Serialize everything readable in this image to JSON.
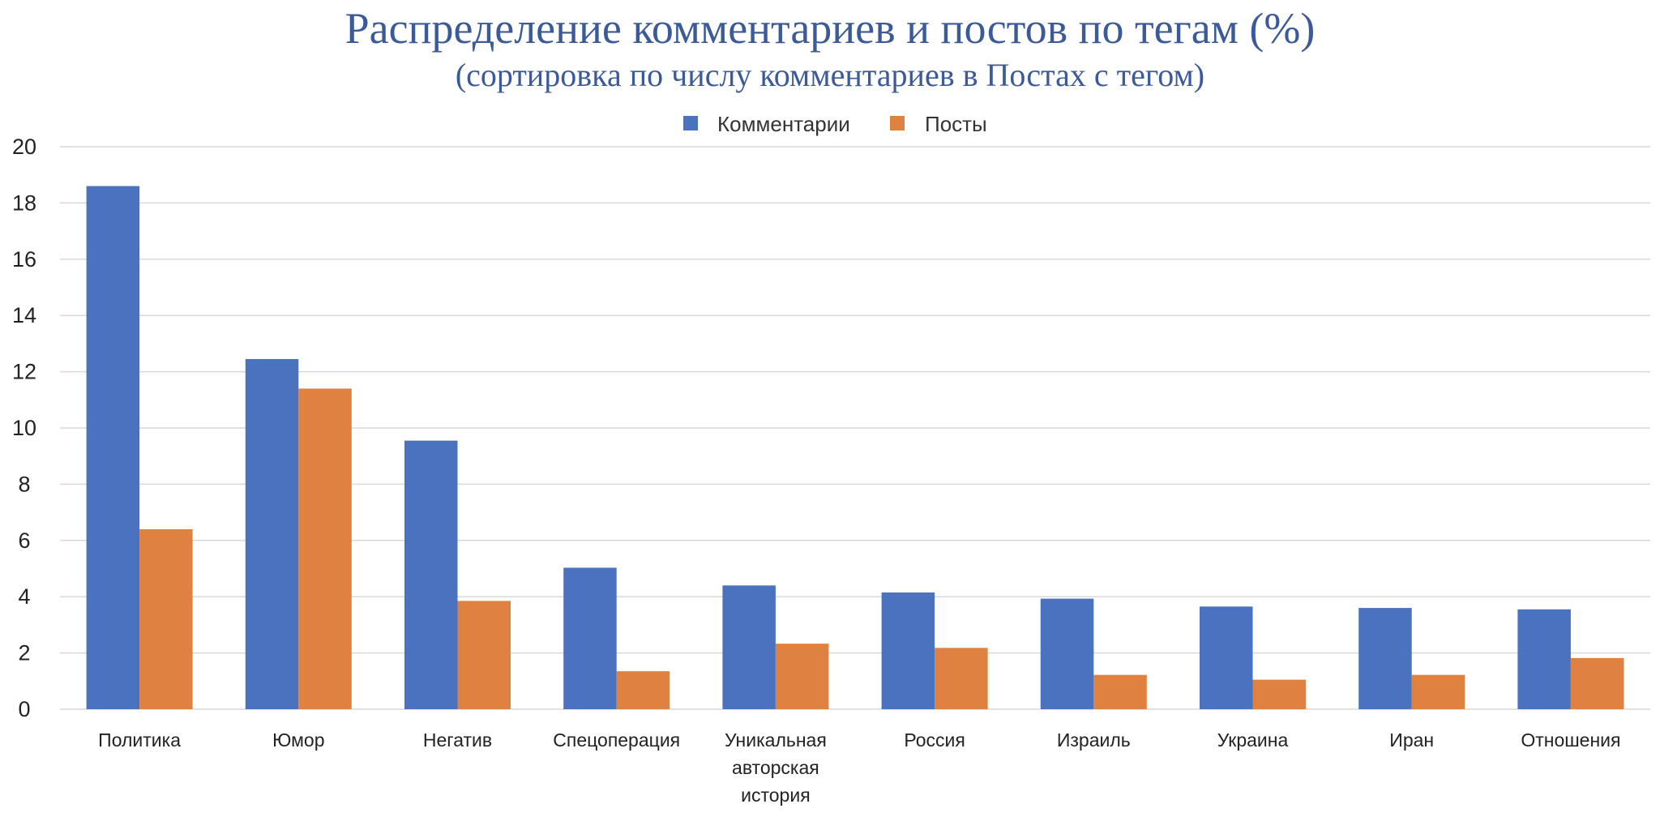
{
  "chart_data": {
    "type": "bar",
    "title": "Распределение комментариев и постов по тегам (%)",
    "subtitle": "(сортировка по числу комментариев в Постах с тегом)",
    "xlabel": "",
    "ylabel": "",
    "ylim": [
      0,
      20
    ],
    "yticks": [
      "0",
      "2",
      "4",
      "6",
      "8",
      "10",
      "12",
      "14",
      "16",
      "18",
      "20"
    ],
    "grid": true,
    "legend_position": "top-center",
    "categories": [
      [
        "Политика"
      ],
      [
        "Юмор"
      ],
      [
        "Негатив"
      ],
      [
        "Спецоперация"
      ],
      [
        "Уникальная",
        "авторская",
        "история"
      ],
      [
        "Россия"
      ],
      [
        "Израиль"
      ],
      [
        "Украина"
      ],
      [
        "Иран"
      ],
      [
        "Отношения"
      ]
    ],
    "series": [
      {
        "name": "Комментарии",
        "color": "#4A72BF",
        "values": [
          18.6,
          12.45,
          9.55,
          5.03,
          4.4,
          4.15,
          3.93,
          3.65,
          3.6,
          3.55
        ]
      },
      {
        "name": "Посты",
        "color": "#DF8141",
        "values": [
          6.4,
          11.4,
          3.85,
          1.35,
          2.33,
          2.18,
          1.22,
          1.05,
          1.22,
          1.82
        ]
      }
    ]
  }
}
